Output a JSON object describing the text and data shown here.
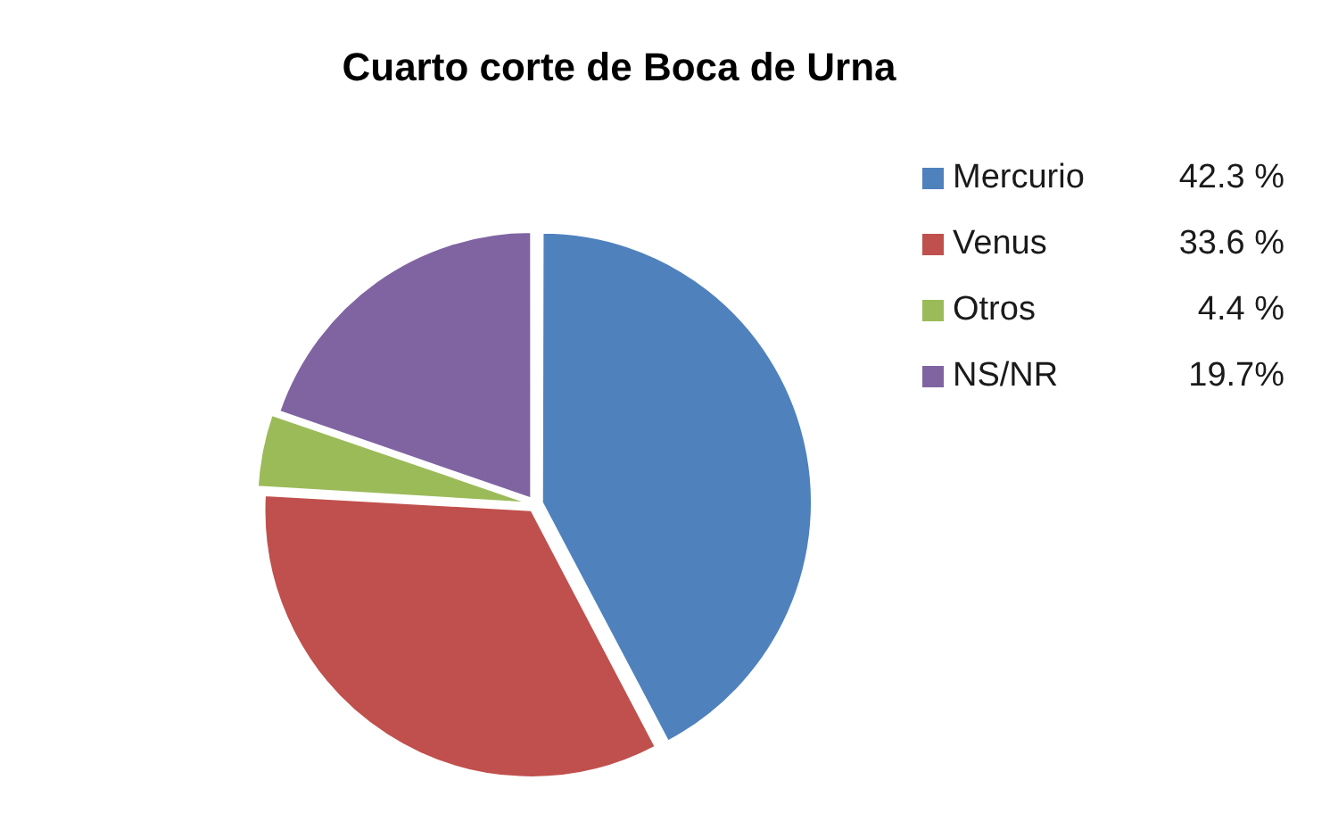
{
  "chart_data": {
    "type": "pie",
    "title": "Cuarto corte de Boca de Urna",
    "categories": [
      "Mercurio",
      "Venus",
      "Otros",
      "NS/NR"
    ],
    "values": [
      42.3,
      33.6,
      4.4,
      19.7
    ],
    "value_labels": [
      "42.3 %",
      "33.6 %",
      "4.4 %",
      "19.7%"
    ],
    "colors": [
      "#4f81bd",
      "#c0504d",
      "#9bbb59",
      "#8064a2"
    ],
    "legend": "top right"
  }
}
